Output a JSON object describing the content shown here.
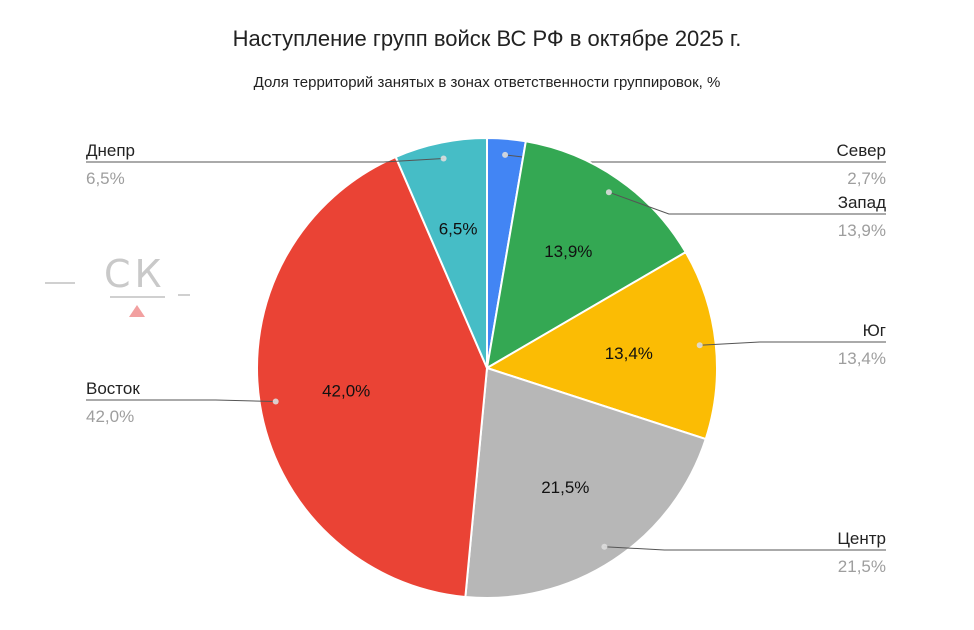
{
  "title": "Наступление групп войск ВС РФ в октябре 2025 г.",
  "subtitle": "Доля территорий занятых в зонах ответственности группировок, %",
  "logo": {
    "text": "СК",
    "icon": "triangle-mark"
  },
  "chart_data": {
    "type": "pie",
    "title": "Наступление групп войск ВС РФ в октябре 2025 г.",
    "subtitle": "Доля территорий занятых в зонах ответственности группировок, %",
    "start": "12 o'clock, clockwise",
    "slices": [
      {
        "name": "Север",
        "value": 2.7,
        "label": "2,7%",
        "inner_label": "",
        "color": "#4285F4",
        "side": "right"
      },
      {
        "name": "Запад",
        "value": 13.9,
        "label": "13,9%",
        "inner_label": "13,9%",
        "color": "#34A853",
        "side": "right"
      },
      {
        "name": "Юг",
        "value": 13.4,
        "label": "13,4%",
        "inner_label": "13,4%",
        "color": "#FBBC04",
        "side": "right"
      },
      {
        "name": "Центр",
        "value": 21.5,
        "label": "21,5%",
        "inner_label": "21,5%",
        "color": "#B7B7B7",
        "side": "right"
      },
      {
        "name": "Восток",
        "value": 42.0,
        "label": "42,0%",
        "inner_label": "42,0%",
        "color": "#EA4335",
        "side": "left"
      },
      {
        "name": "Днепр",
        "value": 6.5,
        "label": "6,5%",
        "inner_label": "6,5%",
        "color": "#46BDC6",
        "side": "left"
      }
    ]
  }
}
